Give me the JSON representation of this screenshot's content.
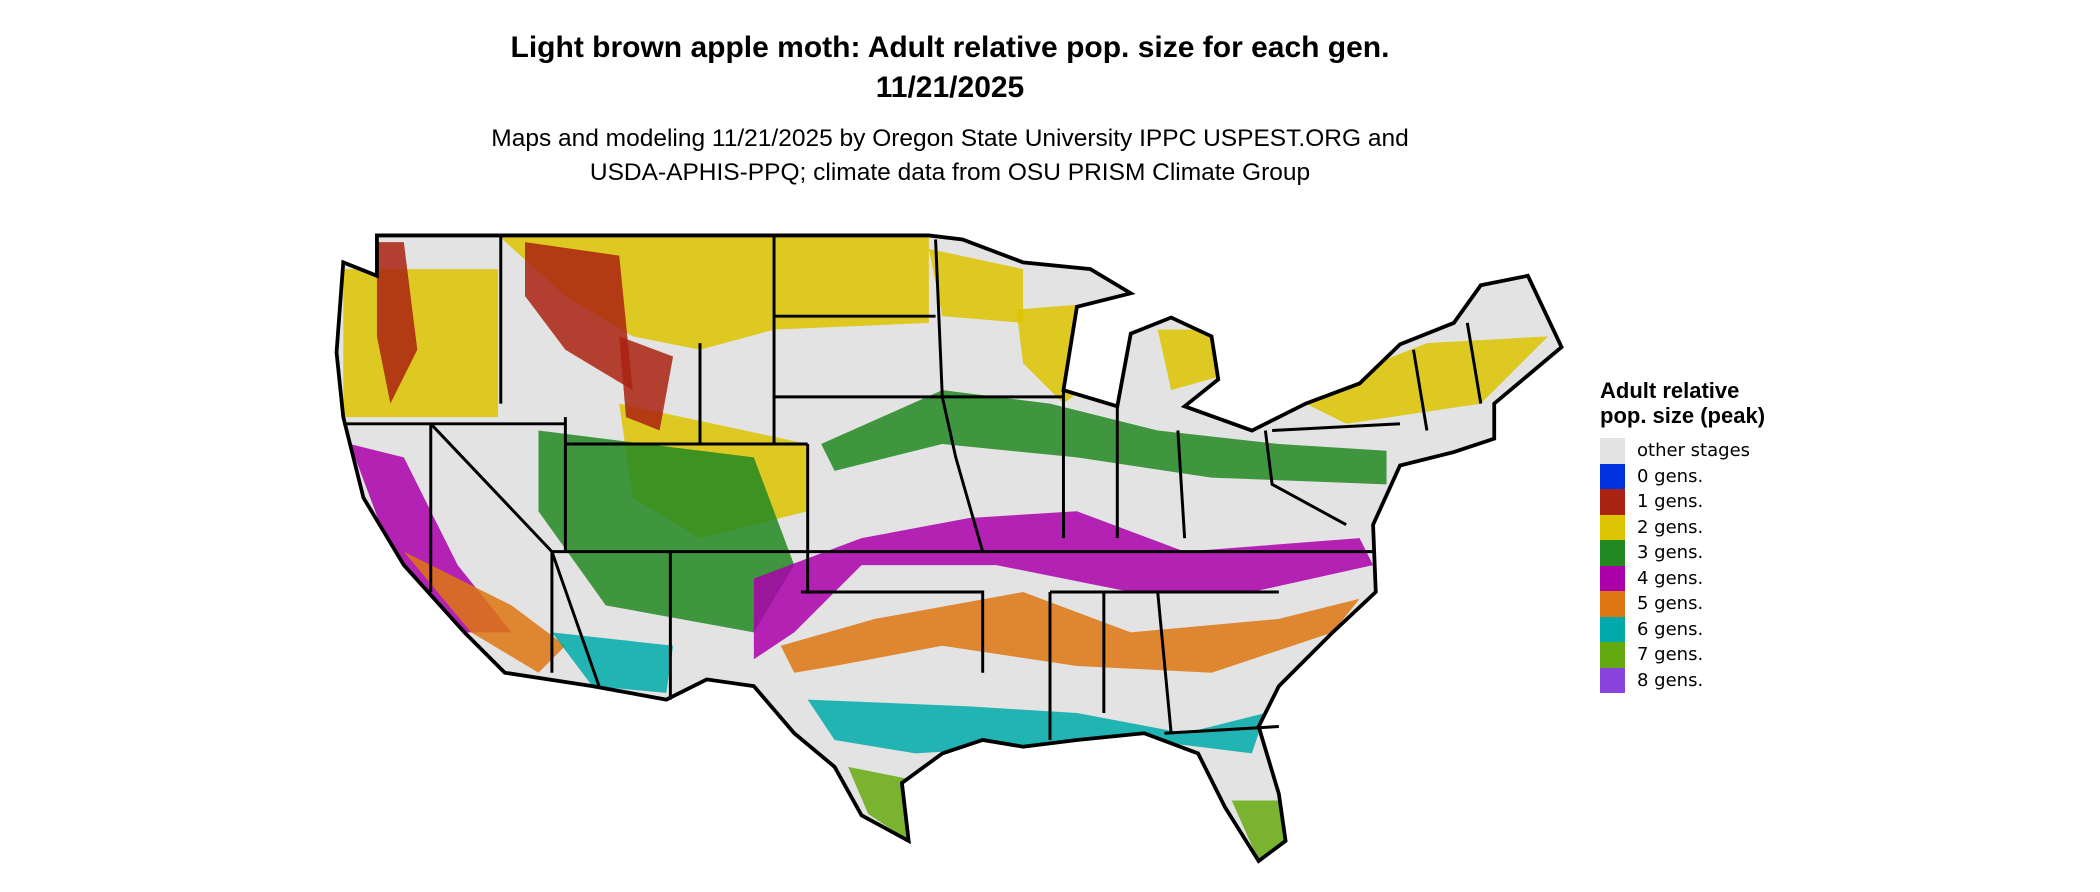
{
  "title_line1": "Light brown apple moth: Adult relative pop. size for each gen.",
  "title_line2": "11/21/2025",
  "subtitle_line1": "Maps and modeling 11/21/2025 by Oregon State University IPPC USPEST.ORG and",
  "subtitle_line2": "USDA-APHIS-PPQ; climate data from OSU PRISM Climate Group",
  "legend": {
    "title": "Adult relative pop. size (peak)",
    "items": [
      {
        "label": "other stages",
        "color": "#e3e3e3"
      },
      {
        "label": "0 gens.",
        "color": "#0033dd"
      },
      {
        "label": "1 gens.",
        "color": "#aa2211"
      },
      {
        "label": "2 gens.",
        "color": "#ddc400"
      },
      {
        "label": "3 gens.",
        "color": "#228822"
      },
      {
        "label": "4 gens.",
        "color": "#aa00aa"
      },
      {
        "label": "5 gens.",
        "color": "#dd7711"
      },
      {
        "label": "6 gens.",
        "color": "#00aaaa"
      },
      {
        "label": "7 gens.",
        "color": "#66aa11"
      },
      {
        "label": "8 gens.",
        "color": "#8844dd"
      }
    ]
  },
  "map": {
    "region": "Contiguous United States",
    "background_color": "#e3e3e3",
    "border_color": "#000000"
  }
}
